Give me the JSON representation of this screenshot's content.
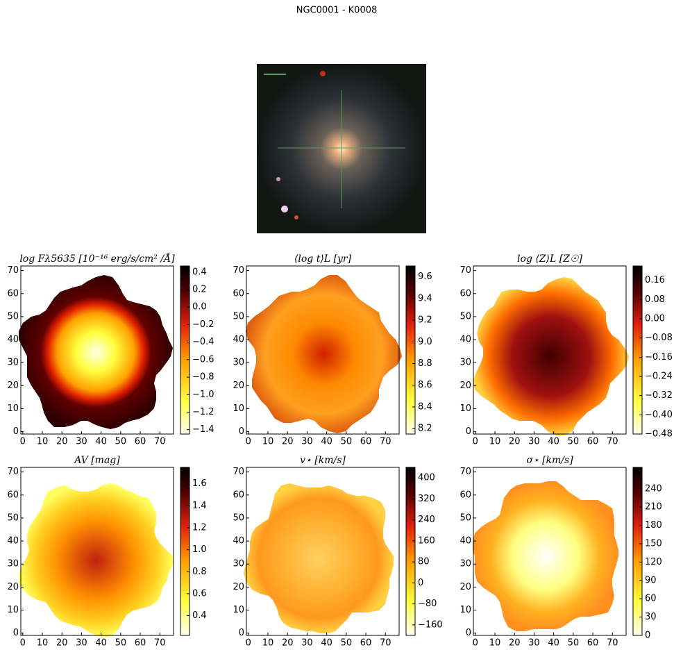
{
  "title": "NGC0001 - K0008",
  "chart_data": [
    {
      "type": "heatmap",
      "title": "log Fλ5635 [10⁻¹⁶ erg/s/cm² /Å]",
      "xlim": [
        -1,
        77
      ],
      "ylim": [
        -1,
        72
      ],
      "xticks": [
        0,
        10,
        20,
        30,
        40,
        50,
        60,
        70
      ],
      "yticks": [
        0,
        10,
        20,
        30,
        40,
        50,
        60,
        70
      ],
      "clim": [
        -1.45,
        0.47
      ],
      "cticks": [
        {
          "value": -1.4,
          "label": "−1.4"
        },
        {
          "value": -1.2,
          "label": "−1.2"
        },
        {
          "value": -1.0,
          "label": "−1.0"
        },
        {
          "value": -0.8,
          "label": "−0.8"
        },
        {
          "value": -0.6,
          "label": "−0.6"
        },
        {
          "value": -0.4,
          "label": "−0.4"
        },
        {
          "value": -0.2,
          "label": "−0.2"
        },
        {
          "value": 0,
          "label": "0.0"
        },
        0.2,
        0.4
      ]
    },
    {
      "type": "heatmap",
      "title": "⟨log t⟩L [yr]",
      "xlim": [
        -1,
        77
      ],
      "ylim": [
        -1,
        72
      ],
      "xticks": [
        0,
        10,
        20,
        30,
        40,
        50,
        60,
        70
      ],
      "yticks": [
        0,
        10,
        20,
        30,
        40,
        50,
        60,
        70
      ],
      "clim": [
        8.15,
        9.7
      ],
      "cticks": [
        8.2,
        8.4,
        8.6,
        8.8,
        {
          "value": 9,
          "label": "9.0"
        },
        9.2,
        9.4,
        9.6
      ]
    },
    {
      "type": "heatmap",
      "title": "log ⟨Z⟩L [Z☉]",
      "xlim": [
        -1,
        77
      ],
      "ylim": [
        -1,
        72
      ],
      "xticks": [
        0,
        10,
        20,
        30,
        40,
        50,
        60,
        70
      ],
      "yticks": [
        0,
        10,
        20,
        30,
        40,
        50,
        60,
        70
      ],
      "clim": [
        -0.48,
        0.22
      ],
      "cticks": [
        {
          "value": -0.48,
          "label": "−0.48"
        },
        {
          "value": -0.4,
          "label": "−0.40"
        },
        {
          "value": -0.32,
          "label": "−0.32"
        },
        {
          "value": -0.24,
          "label": "−0.24"
        },
        {
          "value": -0.16,
          "label": "−0.16"
        },
        {
          "value": -0.08,
          "label": "−0.08"
        },
        {
          "value": 0,
          "label": "0.00"
        },
        0.08,
        0.16
      ]
    },
    {
      "type": "heatmap",
      "title": "AV [mag]",
      "xlim": [
        -1,
        77
      ],
      "ylim": [
        -1,
        72
      ],
      "xticks": [
        0,
        10,
        20,
        30,
        40,
        50,
        60,
        70
      ],
      "yticks": [
        0,
        10,
        20,
        30,
        40,
        50,
        60,
        70
      ],
      "clim": [
        0.22,
        1.75
      ],
      "cticks": [
        0.4,
        0.6,
        0.8,
        {
          "value": 1,
          "label": "1.0"
        },
        1.2,
        1.4,
        1.6
      ]
    },
    {
      "type": "heatmap",
      "title": "v⋆ [km/s]",
      "xlim": [
        -1,
        77
      ],
      "ylim": [
        -1,
        72
      ],
      "xticks": [
        0,
        10,
        20,
        30,
        40,
        50,
        60,
        70
      ],
      "yticks": [
        0,
        10,
        20,
        30,
        40,
        50,
        60,
        70
      ],
      "clim": [
        -200,
        440
      ],
      "cticks": [
        {
          "value": -160,
          "label": "−160"
        },
        {
          "value": -80,
          "label": "−80"
        },
        0,
        80,
        160,
        240,
        320,
        400
      ]
    },
    {
      "type": "heatmap",
      "title": "σ⋆ [km/s]",
      "xlim": [
        -1,
        77
      ],
      "ylim": [
        -1,
        72
      ],
      "xticks": [
        0,
        10,
        20,
        30,
        40,
        50,
        60,
        70
      ],
      "yticks": [
        0,
        10,
        20,
        30,
        40,
        50,
        60,
        70
      ],
      "clim": [
        0,
        275
      ],
      "cticks": [
        0,
        30,
        60,
        90,
        120,
        150,
        180,
        210,
        240
      ]
    }
  ]
}
